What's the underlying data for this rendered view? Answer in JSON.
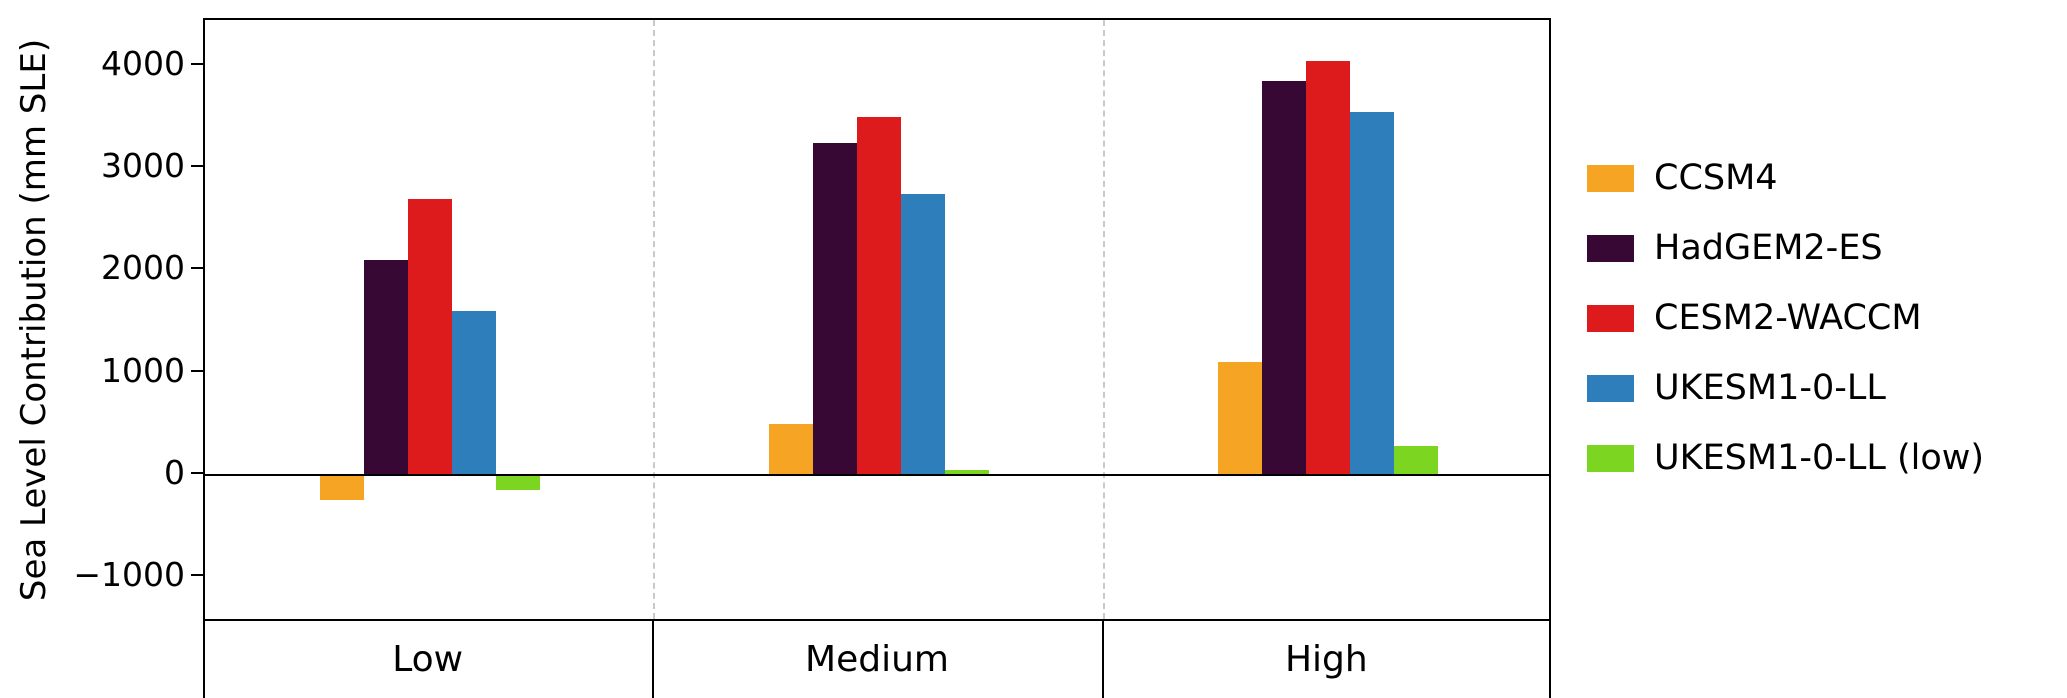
{
  "chart_data": {
    "type": "bar",
    "title": "",
    "xlabel": "",
    "ylabel": "Sea Level Contribution (mm SLE)",
    "categories": [
      "Low",
      "Medium",
      "High"
    ],
    "series": [
      {
        "name": "CCSM4",
        "color": "#F5A523",
        "values": [
          -250,
          500,
          1100
        ]
      },
      {
        "name": "HadGEM2-ES",
        "color": "#380835",
        "values": [
          2100,
          3250,
          3850
        ]
      },
      {
        "name": "CESM2-WACCM",
        "color": "#DE1B1C",
        "values": [
          2700,
          3500,
          4050
        ]
      },
      {
        "name": "UKESM1-0-LL",
        "color": "#2E7EBC",
        "values": [
          1600,
          2750,
          3550
        ]
      },
      {
        "name": "UKESM1-0-LL (low)",
        "color": "#7CD621",
        "values": [
          -150,
          50,
          280
        ]
      }
    ],
    "yticks": [
      -1000,
      0,
      1000,
      2000,
      3000,
      4000
    ],
    "ylim": [
      -1450,
      4450
    ],
    "grid": "vertical dashed lines at group boundaries",
    "zero_line": true,
    "legend_position": "right"
  }
}
